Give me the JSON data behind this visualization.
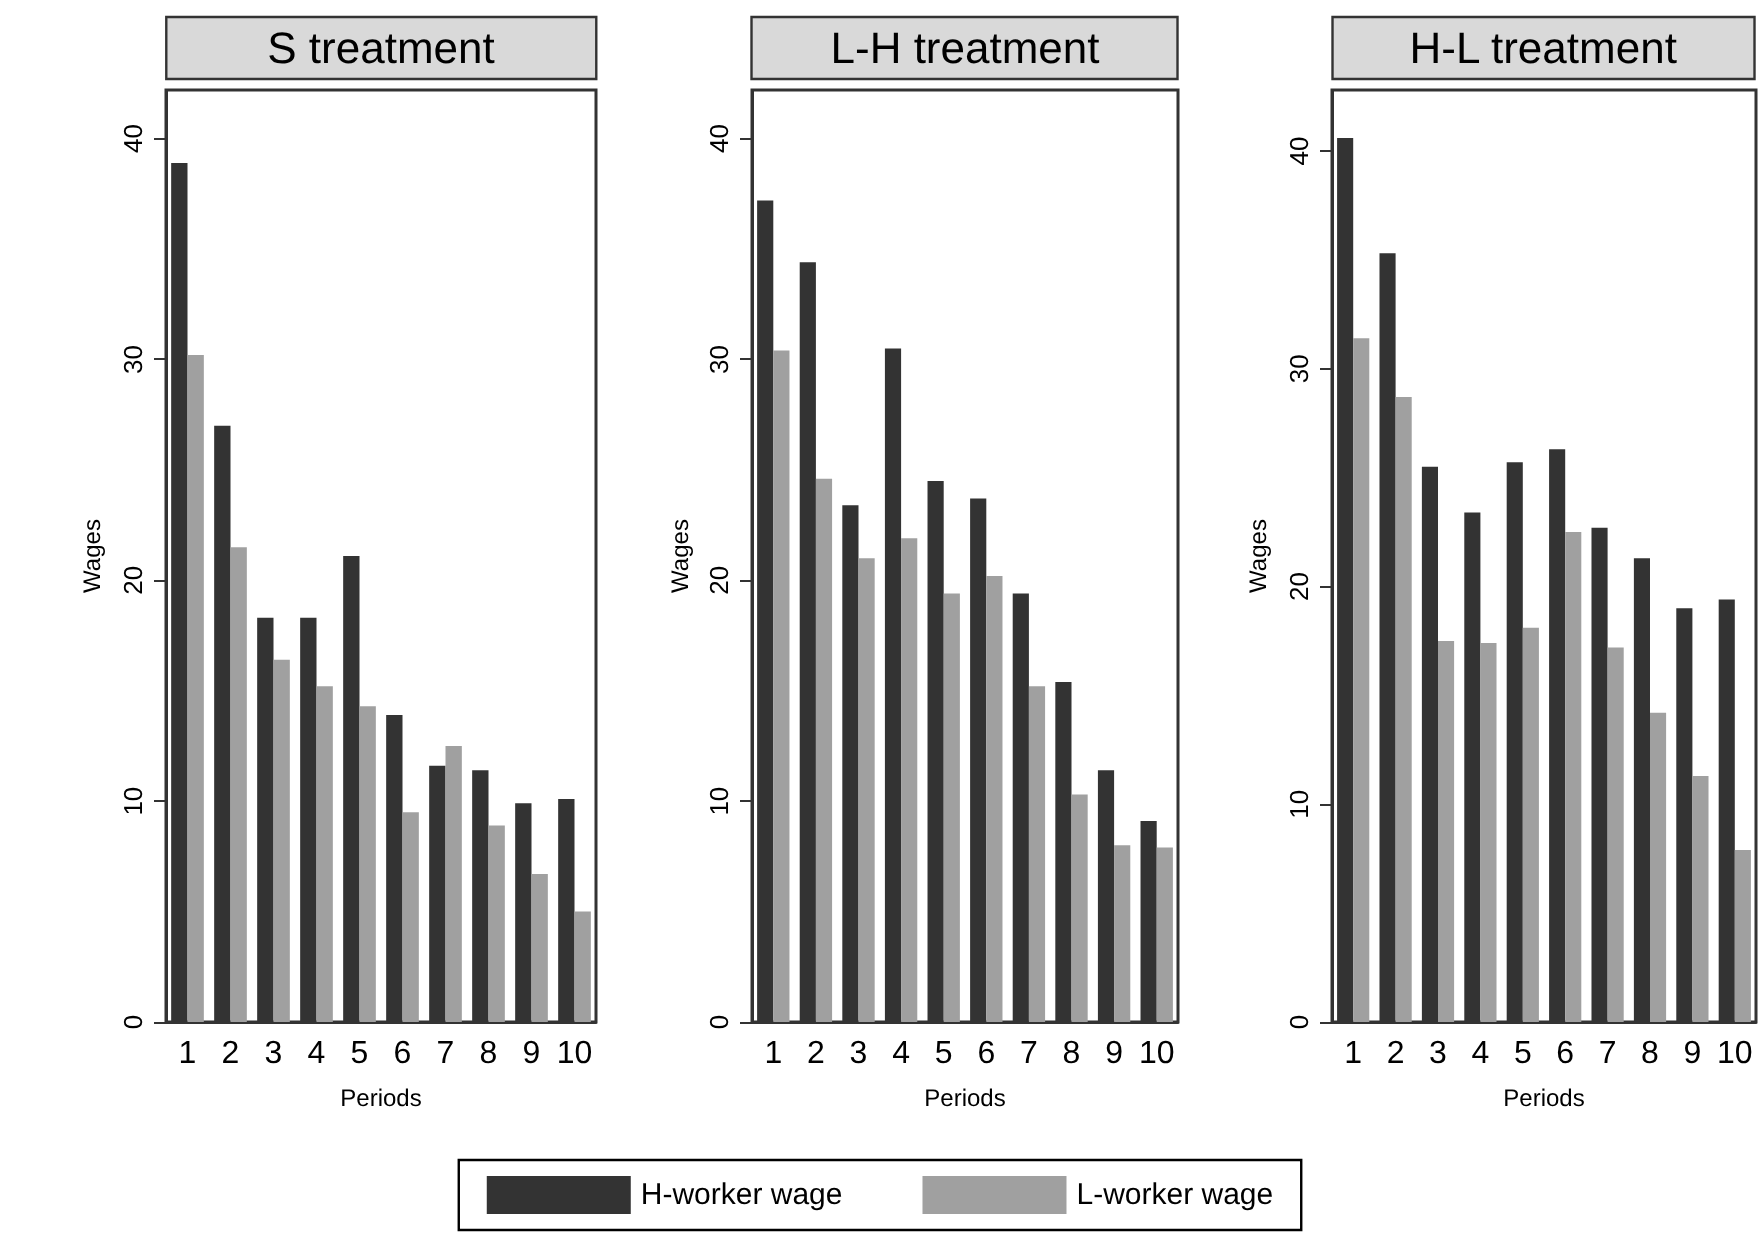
{
  "chart_data": [
    {
      "type": "bar",
      "title": "S treatment",
      "xlabel": "Periods",
      "ylabel": "Wages",
      "categories": [
        "1",
        "2",
        "3",
        "4",
        "5",
        "6",
        "7",
        "8",
        "9",
        "10"
      ],
      "ylim": [
        0,
        42.2
      ],
      "yticks": [
        0,
        10,
        20,
        30,
        40
      ],
      "grid": false,
      "legend": false,
      "series": [
        {
          "color": "#333333",
          "values": [
            38.9,
            27.0,
            18.3,
            18.3,
            21.1,
            13.9,
            11.6,
            11.4,
            9.9,
            10.1
          ]
        },
        {
          "color": "#a0a0a0",
          "values": [
            30.2,
            21.5,
            16.4,
            15.2,
            14.3,
            9.5,
            12.5,
            8.9,
            6.7,
            5.0
          ]
        }
      ]
    },
    {
      "type": "bar",
      "title": "L-H treatment",
      "xlabel": "Periods",
      "ylabel": "Wages",
      "categories": [
        "1",
        "2",
        "3",
        "4",
        "5",
        "6",
        "7",
        "8",
        "9",
        "10"
      ],
      "ylim": [
        0,
        42.2
      ],
      "yticks": [
        0,
        10,
        20,
        30,
        40
      ],
      "grid": false,
      "legend": "bottom",
      "series": [
        {
          "name": "H-worker wage",
          "color": "#333333",
          "values": [
            37.2,
            34.4,
            23.4,
            30.5,
            24.5,
            23.7,
            19.4,
            15.4,
            11.4,
            9.1
          ]
        },
        {
          "name": "L-worker wage",
          "color": "#a0a0a0",
          "values": [
            30.4,
            24.6,
            21.0,
            21.9,
            19.4,
            20.2,
            15.2,
            10.3,
            8.0,
            7.9
          ]
        }
      ]
    },
    {
      "type": "bar",
      "title": "H-L treatment",
      "xlabel": "Periods",
      "ylabel": "Wages",
      "categories": [
        "1",
        "2",
        "3",
        "4",
        "5",
        "6",
        "7",
        "8",
        "9",
        "10"
      ],
      "ylim": [
        0,
        42.8
      ],
      "yticks": [
        0,
        10,
        20,
        30,
        40
      ],
      "grid": false,
      "legend": false,
      "series": [
        {
          "color": "#333333",
          "values": [
            40.6,
            35.3,
            25.5,
            23.4,
            25.7,
            26.3,
            22.7,
            21.3,
            19.0,
            19.4
          ]
        },
        {
          "color": "#a0a0a0",
          "values": [
            31.4,
            28.7,
            17.5,
            17.4,
            18.1,
            22.5,
            17.2,
            14.2,
            11.3,
            7.9
          ]
        }
      ]
    }
  ]
}
